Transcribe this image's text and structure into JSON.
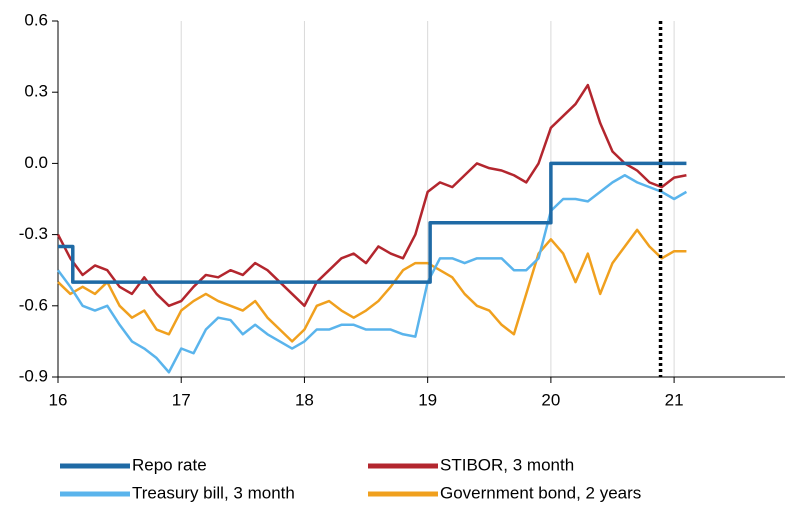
{
  "chart_data": {
    "type": "line",
    "xlim": [
      16,
      21.9
    ],
    "xticks": [
      16,
      17,
      18,
      19,
      20,
      21
    ],
    "ylim": [
      -0.9,
      0.6
    ],
    "yticks": [
      0.6,
      0.3,
      {
        "value": 0,
        "label": "0.0"
      },
      -0.3,
      -0.6,
      -0.9
    ],
    "grid": true,
    "vline": 20.89,
    "x": [
      16.0,
      16.1,
      16.2,
      16.3,
      16.4,
      16.5,
      16.6,
      16.7,
      16.8,
      16.9,
      17.0,
      17.1,
      17.2,
      17.3,
      17.4,
      17.5,
      17.6,
      17.7,
      17.8,
      17.9,
      18.0,
      18.1,
      18.2,
      18.3,
      18.4,
      18.5,
      18.6,
      18.7,
      18.8,
      18.9,
      19.0,
      19.1,
      19.2,
      19.3,
      19.4,
      19.5,
      19.6,
      19.7,
      19.8,
      19.9,
      20.0,
      20.1,
      20.2,
      20.3,
      20.4,
      20.5,
      20.6,
      20.7,
      20.8,
      20.9,
      21.0,
      21.1
    ],
    "series": [
      {
        "name": "Repo rate",
        "color": "#1f6aa5",
        "x": [
          16,
          16.12,
          16.12,
          19.02,
          19.02,
          20.0,
          20.0,
          21.1
        ],
        "values": [
          -0.35,
          -0.35,
          -0.5,
          -0.5,
          -0.25,
          -0.25,
          0,
          0
        ]
      },
      {
        "name": "STIBOR, 3 month",
        "color": "#b3262e",
        "values": [
          -0.3,
          -0.4,
          -0.47,
          -0.43,
          -0.45,
          -0.52,
          -0.55,
          -0.48,
          -0.55,
          -0.6,
          -0.58,
          -0.52,
          -0.47,
          -0.48,
          -0.45,
          -0.47,
          -0.42,
          -0.45,
          -0.5,
          -0.55,
          -0.6,
          -0.5,
          -0.45,
          -0.4,
          -0.38,
          -0.42,
          -0.35,
          -0.38,
          -0.4,
          -0.3,
          -0.12,
          -0.08,
          -0.1,
          -0.05,
          0.0,
          -0.02,
          -0.03,
          -0.05,
          -0.08,
          0.0,
          0.15,
          0.2,
          0.25,
          0.33,
          0.17,
          0.05,
          0.0,
          -0.03,
          -0.08,
          -0.1,
          -0.06,
          -0.05
        ]
      },
      {
        "name": "Treasury bill, 3 month",
        "color": "#5ab4ec",
        "values": [
          -0.45,
          -0.52,
          -0.6,
          -0.62,
          -0.6,
          -0.68,
          -0.75,
          -0.78,
          -0.82,
          -0.88,
          -0.78,
          -0.8,
          -0.7,
          -0.65,
          -0.66,
          -0.72,
          -0.68,
          -0.72,
          -0.75,
          -0.78,
          -0.75,
          -0.7,
          -0.7,
          -0.68,
          -0.68,
          -0.7,
          -0.7,
          -0.7,
          -0.72,
          -0.73,
          -0.5,
          -0.4,
          -0.4,
          -0.42,
          -0.4,
          -0.4,
          -0.4,
          -0.45,
          -0.45,
          -0.4,
          -0.2,
          -0.15,
          -0.15,
          -0.16,
          -0.12,
          -0.08,
          -0.05,
          -0.08,
          -0.1,
          -0.12,
          -0.15,
          -0.12
        ]
      },
      {
        "name": "Government bond, 2 years",
        "color": "#f0a01e",
        "values": [
          -0.5,
          -0.55,
          -0.52,
          -0.55,
          -0.5,
          -0.6,
          -0.65,
          -0.62,
          -0.7,
          -0.72,
          -0.62,
          -0.58,
          -0.55,
          -0.58,
          -0.6,
          -0.62,
          -0.58,
          -0.65,
          -0.7,
          -0.75,
          -0.7,
          -0.6,
          -0.58,
          -0.62,
          -0.65,
          -0.62,
          -0.58,
          -0.52,
          -0.45,
          -0.42,
          -0.42,
          -0.45,
          -0.48,
          -0.55,
          -0.6,
          -0.62,
          -0.68,
          -0.72,
          -0.55,
          -0.38,
          -0.32,
          -0.38,
          -0.5,
          -0.38,
          -0.55,
          -0.42,
          -0.35,
          -0.28,
          -0.35,
          -0.4,
          -0.37,
          -0.37
        ]
      }
    ]
  }
}
